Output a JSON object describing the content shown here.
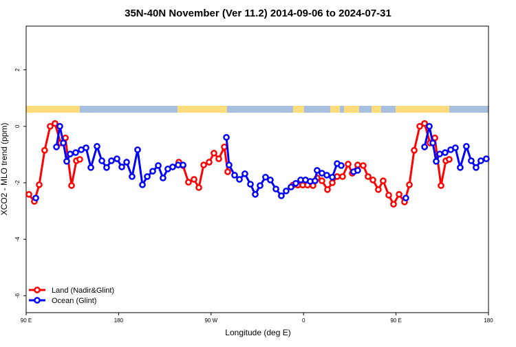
{
  "chart_data": {
    "type": "line",
    "title": "35N-40N November (Ver 11.2)   2014-09-06 to 2024-07-31",
    "x_label": "Longitude (deg E)",
    "y_label": "XCO2 - MLO trend (ppm)",
    "xlim": [
      90,
      540
    ],
    "ylim": [
      -6.6,
      3.55
    ],
    "xticks": [
      {
        "value": 90,
        "label": "90 E"
      },
      180,
      {
        "value": 270,
        "label": "90 W"
      },
      {
        "value": 360,
        "label": "0"
      },
      {
        "value": 450,
        "label": "90 E"
      },
      {
        "value": 540,
        "label": "180"
      }
    ],
    "yticks": [
      -6,
      -4,
      -2,
      0,
      2
    ],
    "legend": "bottom-left",
    "series": [
      {
        "name": "Land (Nadir&Glint)",
        "color": "#ff0000",
        "x": [
          92.7,
          98,
          102.7,
          108,
          113.4,
          118.1,
          123.5,
          128.2,
          134.2,
          138.9,
          142.2,
          null,
          238.6,
          242.7,
          248,
          253.4,
          258.1,
          262.8,
          268.1,
          272.8,
          277.5,
          282.9,
          286.2,
          null,
          349.8,
          354.5,
          359.2,
          363.9,
          369.2,
          373.2,
          377.9,
          383.3,
          388,
          392.7,
          398,
          403.4,
          407.4,
          412.7,
          418.1,
          422.8,
          427.5,
          432.8,
          437.5,
          442.9,
          447.6,
          453,
          458.3,
          463,
          467.7,
          473.1,
          477.8,
          483.1,
          487.8,
          493.8,
          498.5,
          501.8
        ],
        "values": [
          -2.41,
          -2.66,
          -2.07,
          -0.85,
          0,
          0.1,
          -0.59,
          -0.41,
          -2.1,
          -1.22,
          -1.17,
          null,
          -1.27,
          -1.39,
          -1.98,
          -1.88,
          -2.17,
          -1.37,
          -1.27,
          -0.95,
          -1.15,
          -0.73,
          -1.61,
          null,
          -2.08,
          -2.08,
          -2.08,
          -2.08,
          -2.1,
          -1.83,
          -1.93,
          -2.24,
          -2,
          -1.78,
          -1.78,
          -1.34,
          -1.66,
          -1.37,
          -1.39,
          -1.78,
          -1.9,
          -2.24,
          -1.93,
          -2.44,
          -2.76,
          -2.41,
          -2.68,
          -2.07,
          -0.85,
          0,
          0.1,
          -0.59,
          -0.41,
          -2.1,
          -1.22,
          -1.17
        ]
      },
      {
        "name": "Ocean (Glint)",
        "color": "#0000ff",
        "x": [
          99.4,
          null,
          119.5,
          122.8,
          126.2,
          129.5,
          132.9,
          138.2,
          143.6,
          148.3,
          153,
          159,
          163.7,
          168.3,
          173,
          178.4,
          183.1,
          187.8,
          193.1,
          198.5,
          203.2,
          207.9,
          213.2,
          218.6,
          223.2,
          227.9,
          232.6,
          238,
          242.7,
          null,
          284.9,
          287.5,
          292.9,
          297.6,
          302.9,
          308.3,
          313,
          317.7,
          323,
          327.7,
          333.1,
          338.4,
          343.1,
          347.8,
          352.5,
          357.2,
          361.9,
          366.5,
          371.2,
          373.2,
          377.9,
          382.6,
          388,
          392.7,
          396.7,
          null,
          408.7,
          412.7,
          null,
          459.6,
          null,
          477.8,
          482.4,
          485.8,
          489.1,
          492.5,
          497.8,
          503.2,
          507.8,
          512.5,
          518.5,
          523.2,
          527.9,
          532.6,
          537.9
        ],
        "values": [
          -2.54,
          null,
          -0.73,
          0,
          -0.59,
          -1.24,
          -0.98,
          -0.93,
          -0.83,
          -0.76,
          -1.46,
          -0.71,
          -1.22,
          -1.46,
          -1.22,
          -1.15,
          -1.44,
          -1.27,
          -1.78,
          -0.83,
          -2.07,
          -1.78,
          -1.59,
          -1.39,
          -1.83,
          -1.51,
          -1.44,
          -1.37,
          -1.37,
          null,
          -0.39,
          -1.37,
          -1.73,
          -1.88,
          -1.68,
          -2.05,
          -2.41,
          -2.1,
          -1.8,
          -1.9,
          -2.22,
          -2.46,
          -2.29,
          -2.15,
          -2.02,
          -1.9,
          -1.9,
          -1.95,
          -1.93,
          -1.56,
          -1.66,
          -1.73,
          -1.8,
          -1.32,
          -1.39,
          null,
          -1.61,
          -1.56,
          null,
          -2.54,
          null,
          -0.73,
          0,
          -0.59,
          -1.24,
          -0.98,
          -0.93,
          -0.83,
          -0.76,
          -1.46,
          -0.71,
          -1.22,
          -1.46,
          -1.22,
          -1.15
        ]
      }
    ]
  }
}
